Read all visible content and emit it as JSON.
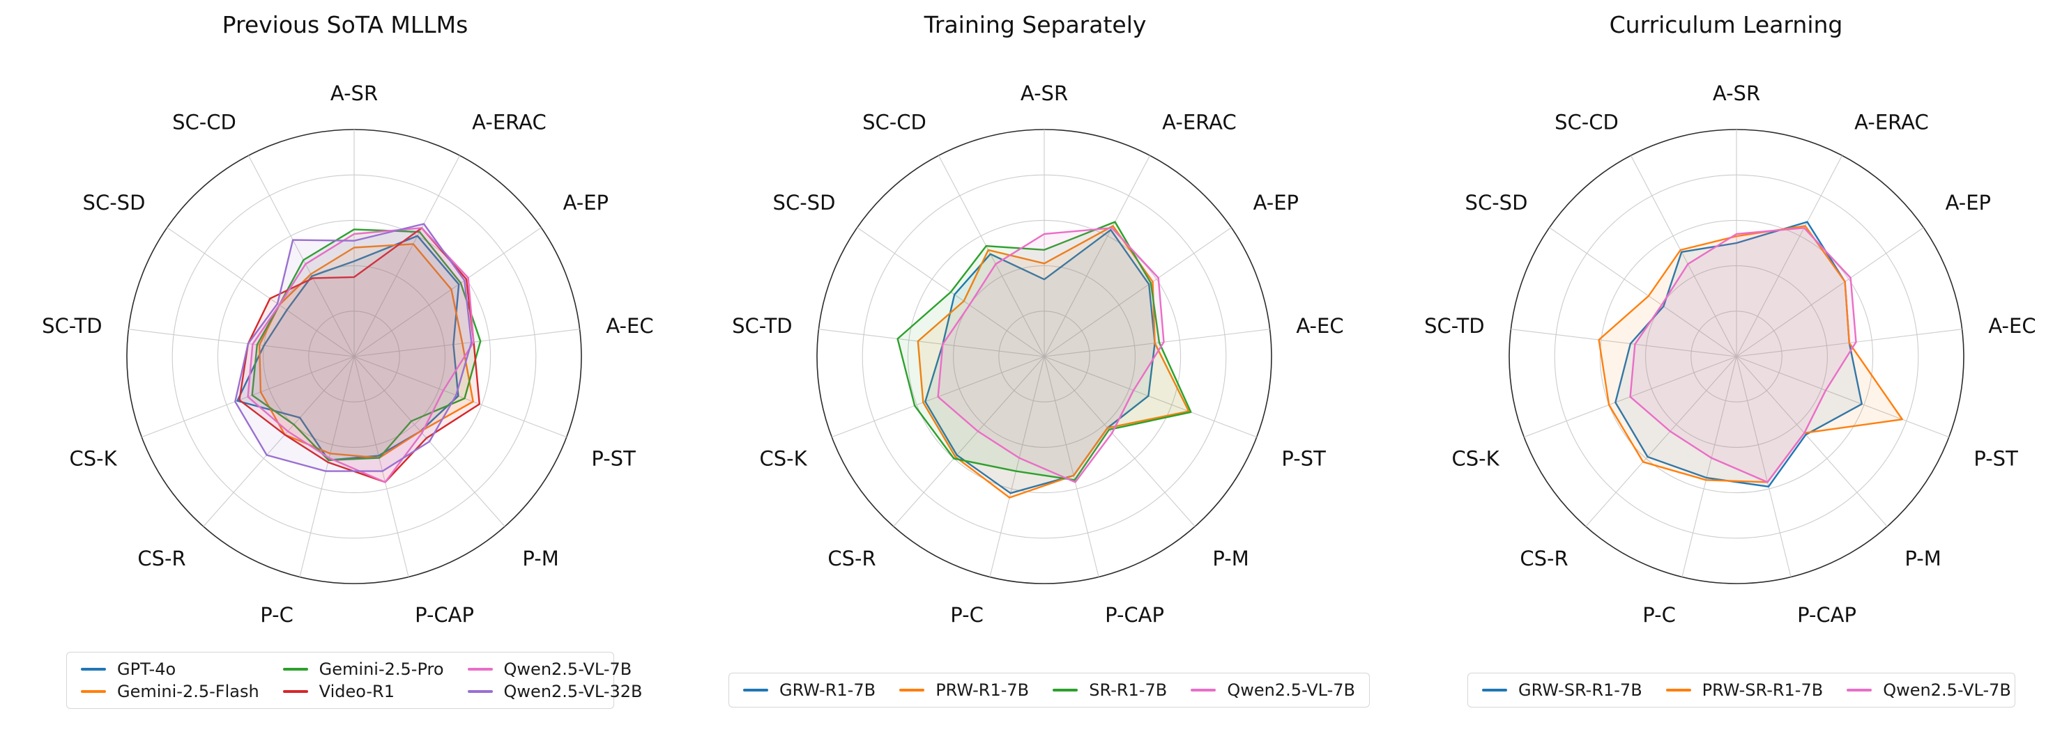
{
  "figure": {
    "background": "#ffffff",
    "grid_color": "#cccccc",
    "outer_ring_color": "#2b2b2b",
    "text_color": "#111111"
  },
  "categories": [
    "A-SR",
    "A-ERAC",
    "A-EP",
    "A-EC",
    "P-ST",
    "P-M",
    "P-CAP",
    "P-C",
    "CS-R",
    "CS-K",
    "SC-TD",
    "SC-SD",
    "SC-CD"
  ],
  "radial_ticks": [
    20,
    40,
    60,
    80,
    100
  ],
  "chart_data": [
    {
      "type": "radar",
      "title": "Previous SoTA MLLMs",
      "categories": [
        "A-SR",
        "A-ERAC",
        "A-EP",
        "A-EC",
        "P-ST",
        "P-M",
        "P-CAP",
        "P-C",
        "CS-R",
        "CS-K",
        "SC-TD",
        "SC-SD",
        "SC-CD"
      ],
      "rmax": 100,
      "grid": true,
      "legend_position": "bottom",
      "series": [
        {
          "name": "GPT-4o",
          "color": "#1f77b4",
          "values": [
            42,
            60,
            56,
            44,
            49,
            44,
            45,
            47,
            36,
            55,
            40,
            36,
            40
          ]
        },
        {
          "name": "Gemini-2.5-Flash",
          "color": "#ff7f0e",
          "values": [
            48,
            56,
            52,
            48,
            56,
            44,
            46,
            44,
            46,
            44,
            42,
            40,
            41
          ]
        },
        {
          "name": "Gemini-2.5-Pro",
          "color": "#2ca02c",
          "values": [
            56,
            62,
            57,
            56,
            52,
            38,
            46,
            47,
            40,
            48,
            43,
            40,
            48
          ]
        },
        {
          "name": "Video-R1",
          "color": "#d62728",
          "values": [
            35,
            64,
            60,
            53,
            59,
            48,
            57,
            48,
            46,
            54,
            47,
            45,
            39
          ]
        },
        {
          "name": "Qwen2.5-VL-7B",
          "color": "#ea6ec7",
          "values": [
            54,
            64,
            61,
            53,
            42,
            45,
            57,
            46,
            44,
            50,
            45,
            40,
            46
          ]
        },
        {
          "name": "Qwen2.5-VL-32B",
          "color": "#9a6fd0",
          "values": [
            51,
            66,
            59,
            52,
            48,
            50,
            52,
            52,
            58,
            56,
            47,
            41,
            58
          ]
        }
      ]
    },
    {
      "type": "radar",
      "title": "Training Separately",
      "categories": [
        "A-SR",
        "A-ERAC",
        "A-EP",
        "A-EC",
        "P-ST",
        "P-M",
        "P-CAP",
        "P-C",
        "CS-R",
        "CS-K",
        "SC-TD",
        "SC-SD",
        "SC-CD"
      ],
      "rmax": 100,
      "grid": true,
      "legend_position": "bottom",
      "series": [
        {
          "name": "GRW-R1-7B",
          "color": "#1f77b4",
          "values": [
            34,
            63,
            56,
            49,
            49,
            42,
            54,
            62,
            58,
            56,
            45,
            48,
            51
          ]
        },
        {
          "name": "PRW-R1-7B",
          "color": "#ff7f0e",
          "values": [
            41,
            65,
            58,
            49,
            68,
            42,
            54,
            64,
            59,
            57,
            56,
            43,
            53
          ]
        },
        {
          "name": "SR-R1-7B",
          "color": "#2ca02c",
          "values": [
            47,
            67,
            57,
            51,
            69,
            43,
            56,
            52,
            60,
            61,
            65,
            50,
            55
          ]
        },
        {
          "name": "Qwen2.5-VL-7B",
          "color": "#ea6ec7",
          "values": [
            54,
            64,
            61,
            53,
            42,
            45,
            57,
            46,
            44,
            50,
            45,
            40,
            46
          ]
        }
      ]
    },
    {
      "type": "radar",
      "title": "Curriculum Learning",
      "categories": [
        "A-SR",
        "A-ERAC",
        "A-EP",
        "A-EC",
        "P-ST",
        "P-M",
        "P-CAP",
        "P-C",
        "CS-R",
        "CS-K",
        "SC-TD",
        "SC-SD",
        "SC-CD"
      ],
      "rmax": 100,
      "grid": true,
      "legend_position": "bottom",
      "series": [
        {
          "name": "GRW-SR-R1-7B",
          "color": "#1f77b4",
          "values": [
            50,
            67,
            58,
            50,
            59,
            46,
            59,
            55,
            59,
            57,
            47,
            39,
            52
          ]
        },
        {
          "name": "PRW-SR-R1-7B",
          "color": "#ff7f0e",
          "values": [
            53,
            65,
            58,
            50,
            78,
            45,
            57,
            56,
            62,
            60,
            61,
            47,
            53
          ]
        },
        {
          "name": "Qwen2.5-VL-7B",
          "color": "#ea6ec7",
          "values": [
            54,
            64,
            61,
            53,
            42,
            45,
            57,
            46,
            44,
            50,
            45,
            40,
            46
          ]
        }
      ]
    }
  ]
}
